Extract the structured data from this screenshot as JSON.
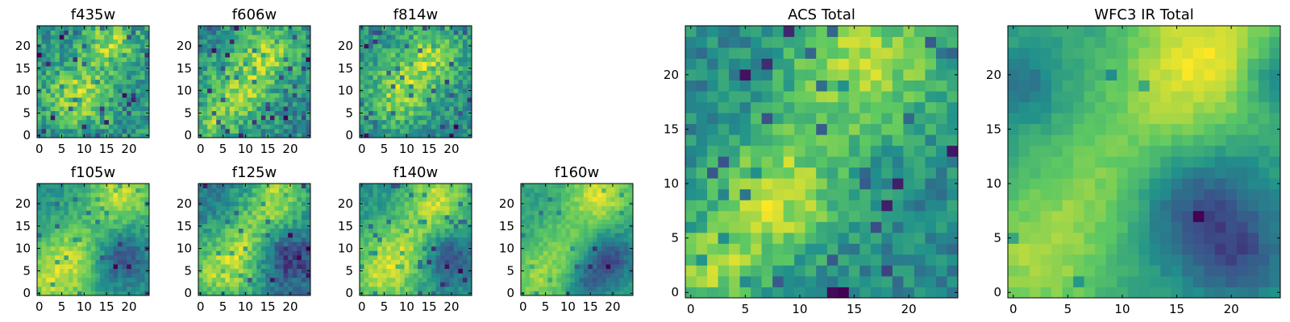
{
  "figure": {
    "colormap": [
      "#440154",
      "#3b528b",
      "#21918c",
      "#5ec962",
      "#fde725"
    ],
    "axis_color": "#000000"
  },
  "chart_data": [
    {
      "type": "heatmap",
      "title": "f435w",
      "grid_size": 25,
      "xlim": [
        0,
        24
      ],
      "ylim": [
        0,
        24
      ],
      "x_ticks": [
        0,
        5,
        10,
        15,
        20
      ],
      "y_ticks": [
        0,
        5,
        10,
        15,
        20
      ],
      "xlabel": "",
      "ylabel": "",
      "grid": false,
      "seed": 11,
      "pattern": {
        "noise": 0.55,
        "bright_spots": [
          [
            16,
            21,
            4,
            0.5
          ],
          [
            9,
            9,
            5,
            0.5
          ]
        ],
        "gradient": 0.0,
        "dark_patches": [],
        "dark_pixel_rate": 0.06
      }
    },
    {
      "type": "heatmap",
      "title": "f606w",
      "grid_size": 25,
      "xlim": [
        0,
        24
      ],
      "ylim": [
        0,
        24
      ],
      "x_ticks": [
        0,
        5,
        10,
        15,
        20
      ],
      "y_ticks": [
        0,
        5,
        10,
        15,
        20
      ],
      "xlabel": "",
      "ylabel": "",
      "grid": false,
      "seed": 23,
      "pattern": {
        "noise": 0.5,
        "bright_spots": [
          [
            15,
            19,
            5,
            0.55
          ],
          [
            8,
            9,
            5,
            0.55
          ],
          [
            2,
            2,
            3,
            0.4
          ]
        ],
        "gradient": 0.0,
        "dark_patches": [],
        "dark_pixel_rate": 0.05
      }
    },
    {
      "type": "heatmap",
      "title": "f814w",
      "grid_size": 25,
      "xlim": [
        0,
        24
      ],
      "ylim": [
        0,
        24
      ],
      "x_ticks": [
        0,
        5,
        10,
        15,
        20
      ],
      "y_ticks": [
        0,
        5,
        10,
        15,
        20
      ],
      "xlabel": "",
      "ylabel": "",
      "grid": false,
      "seed": 37,
      "pattern": {
        "noise": 0.5,
        "bright_spots": [
          [
            15,
            18,
            5,
            0.55
          ],
          [
            8,
            9,
            5,
            0.55
          ]
        ],
        "gradient": 0.0,
        "dark_patches": [],
        "dark_pixel_rate": 0.06
      }
    },
    {
      "type": "heatmap",
      "title": "f105w",
      "grid_size": 25,
      "xlim": [
        0,
        24
      ],
      "ylim": [
        0,
        24
      ],
      "x_ticks": [
        0,
        5,
        10,
        15,
        20
      ],
      "y_ticks": [
        0,
        5,
        10,
        15,
        20
      ],
      "xlabel": "",
      "ylabel": "",
      "grid": false,
      "seed": 41,
      "pattern": {
        "noise": 0.35,
        "bright_spots": [
          [
            18,
            22,
            5,
            0.8
          ],
          [
            3,
            3,
            6,
            0.7
          ],
          [
            9,
            10,
            5,
            0.45
          ]
        ],
        "gradient": 0.0,
        "dark_patches": [
          [
            18,
            8,
            4,
            0.6
          ]
        ],
        "dark_pixel_rate": 0.04
      }
    },
    {
      "type": "heatmap",
      "title": "f125w",
      "grid_size": 25,
      "xlim": [
        0,
        24
      ],
      "ylim": [
        0,
        24
      ],
      "x_ticks": [
        0,
        5,
        10,
        15,
        20
      ],
      "y_ticks": [
        0,
        5,
        10,
        15,
        20
      ],
      "xlabel": "",
      "ylabel": "",
      "grid": false,
      "seed": 53,
      "pattern": {
        "noise": 0.4,
        "bright_spots": [
          [
            17,
            21,
            5,
            0.75
          ],
          [
            4,
            4,
            6,
            0.65
          ],
          [
            10,
            11,
            5,
            0.5
          ]
        ],
        "gradient": 0.0,
        "dark_patches": [
          [
            19,
            8,
            4,
            0.5
          ]
        ],
        "dark_pixel_rate": 0.04
      }
    },
    {
      "type": "heatmap",
      "title": "f140w",
      "grid_size": 25,
      "xlim": [
        0,
        24
      ],
      "ylim": [
        0,
        24
      ],
      "x_ticks": [
        0,
        5,
        10,
        15,
        20
      ],
      "y_ticks": [
        0,
        5,
        10,
        15,
        20
      ],
      "xlabel": "",
      "ylabel": "",
      "grid": false,
      "seed": 67,
      "pattern": {
        "noise": 0.35,
        "bright_spots": [
          [
            17,
            21,
            5,
            0.8
          ],
          [
            4,
            4,
            6,
            0.7
          ],
          [
            10,
            11,
            5,
            0.5
          ]
        ],
        "gradient": 0.0,
        "dark_patches": [
          [
            19,
            8,
            4,
            0.6
          ]
        ],
        "dark_pixel_rate": 0.04
      }
    },
    {
      "type": "heatmap",
      "title": "f160w",
      "grid_size": 25,
      "xlim": [
        0,
        24
      ],
      "ylim": [
        0,
        24
      ],
      "x_ticks": [
        0,
        5,
        10,
        15,
        20
      ],
      "y_ticks": [
        0,
        5,
        10,
        15,
        20
      ],
      "xlabel": "",
      "ylabel": "",
      "grid": false,
      "seed": 79,
      "pattern": {
        "noise": 0.3,
        "bright_spots": [
          [
            17,
            22,
            5,
            0.85
          ],
          [
            3,
            3,
            5,
            0.6
          ],
          [
            10,
            11,
            5,
            0.45
          ]
        ],
        "gradient": 0.0,
        "dark_patches": [
          [
            19,
            8,
            4,
            0.8
          ],
          [
            14,
            3,
            3,
            0.5
          ]
        ],
        "dark_pixel_rate": 0.03
      }
    },
    {
      "type": "heatmap",
      "title": "ACS Total",
      "grid_size": 25,
      "xlim": [
        0,
        24
      ],
      "ylim": [
        0,
        24
      ],
      "x_ticks": [
        0,
        5,
        10,
        15,
        20
      ],
      "y_ticks": [
        0,
        5,
        10,
        15,
        20
      ],
      "xlabel": "",
      "ylabel": "",
      "grid": false,
      "seed": 97,
      "pattern": {
        "noise": 0.4,
        "bright_spots": [
          [
            16,
            21,
            5,
            0.65
          ],
          [
            8,
            9,
            4,
            0.7
          ],
          [
            2,
            2,
            3,
            0.55
          ]
        ],
        "gradient": 0.0,
        "dark_patches": [],
        "dark_pixel_rate": 0.05
      }
    },
    {
      "type": "heatmap",
      "title": "WFC3 IR Total",
      "grid_size": 25,
      "xlim": [
        0,
        24
      ],
      "ylim": [
        0,
        24
      ],
      "x_ticks": [
        0,
        5,
        10,
        15,
        20
      ],
      "y_ticks": [
        0,
        5,
        10,
        15,
        20
      ],
      "xlabel": "",
      "ylabel": "",
      "grid": false,
      "seed": 113,
      "pattern": {
        "noise": 0.2,
        "bright_spots": [
          [
            18,
            23,
            5,
            0.9
          ],
          [
            14,
            16,
            5,
            0.5
          ],
          [
            2,
            3,
            5,
            0.75
          ],
          [
            8,
            10,
            4,
            0.4
          ]
        ],
        "gradient": 0.0,
        "dark_patches": [
          [
            17,
            8,
            4,
            0.9
          ],
          [
            21,
            3,
            3,
            0.6
          ],
          [
            1,
            19,
            2,
            0.5
          ],
          [
            24,
            20,
            2,
            0.6
          ]
        ],
        "dark_pixel_rate": 0.01
      }
    }
  ]
}
